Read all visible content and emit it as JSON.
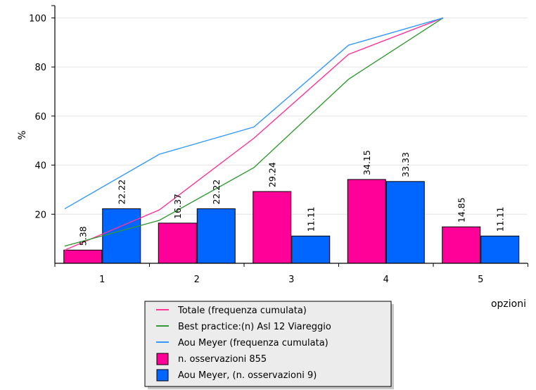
{
  "chart_data": {
    "type": "bar",
    "xlabel": "opzioni",
    "ylabel": "%",
    "categories": [
      "1",
      "2",
      "3",
      "4",
      "5"
    ],
    "ylim": [
      0,
      105
    ],
    "yticks": [
      20,
      40,
      60,
      80,
      100
    ],
    "grid": true,
    "legend_position": "bottom",
    "bar_series": [
      {
        "name": "n. osservazioni 855",
        "color": "#ff0099",
        "values": [
          5.38,
          16.37,
          29.24,
          34.15,
          14.85
        ],
        "labels": [
          "5.38",
          "16.37",
          "29.24",
          "34.15",
          "14.85"
        ]
      },
      {
        "name": "Aou Meyer, (n. osservazioni 9)",
        "color": "#0066ff",
        "values": [
          22.22,
          22.22,
          11.11,
          33.33,
          11.11
        ],
        "labels": [
          "22.22",
          "22.22",
          "11.11",
          "33.33",
          "11.11"
        ]
      }
    ],
    "line_series": [
      {
        "name": "Totale (frequenza cumulata)",
        "color": "#ff3399",
        "x": [
          0.5,
          1.5,
          2.5,
          3.5,
          4.5
        ],
        "values": [
          5.38,
          21.75,
          50.99,
          85.14,
          100
        ]
      },
      {
        "name": "Best practice:(n) Asl 12 Viareggio",
        "color": "#339933",
        "x": [
          0.5,
          1.5,
          2.5,
          3.5,
          4.5
        ],
        "values": [
          7,
          17.5,
          39,
          75,
          100
        ]
      },
      {
        "name": "Aou Meyer (frequenza cumulata)",
        "color": "#3399ff",
        "x": [
          0.5,
          1.5,
          2.5,
          3.5,
          4.5
        ],
        "values": [
          22.22,
          44.44,
          55.55,
          88.88,
          100
        ]
      }
    ],
    "legend": [
      {
        "label": "Totale (frequenza cumulata)",
        "kind": "line",
        "color": "#ff3399"
      },
      {
        "label": "Best practice:(n) Asl 12 Viareggio",
        "kind": "line",
        "color": "#339933"
      },
      {
        "label": "Aou Meyer (frequenza cumulata)",
        "kind": "line",
        "color": "#3399ff"
      },
      {
        "label": "n. osservazioni 855",
        "kind": "box",
        "color": "#ff0099"
      },
      {
        "label": "Aou Meyer, (n. osservazioni 9)",
        "kind": "box",
        "color": "#0066ff"
      }
    ]
  }
}
